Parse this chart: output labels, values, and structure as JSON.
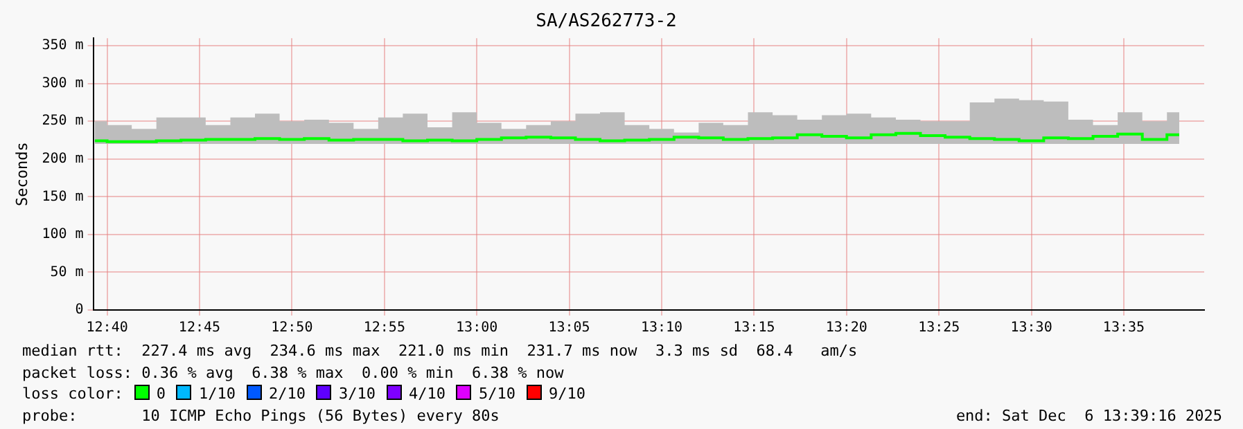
{
  "chart_data": {
    "type": "step",
    "title": "SA/AS262773-2",
    "ylabel": "Seconds",
    "x": [
      12.6556,
      12.6778,
      12.7,
      12.7222,
      12.7444,
      12.7667,
      12.7889,
      12.8111,
      12.8333,
      12.8556,
      12.8778,
      12.9,
      12.9222,
      12.9444,
      12.9667,
      12.9889,
      13.0111,
      13.0333,
      13.0556,
      13.0778,
      13.1,
      13.1222,
      13.1444,
      13.1667,
      13.1889,
      13.2111,
      13.2333,
      13.2556,
      13.2778,
      13.3,
      13.3222,
      13.3444,
      13.3667,
      13.3889,
      13.4111,
      13.4333,
      13.4556,
      13.4778,
      13.5,
      13.5222,
      13.5444,
      13.5667,
      13.5889,
      13.6111,
      13.6333
    ],
    "series": [
      {
        "color": "#00ff00",
        "values": [
          224,
          223,
          223,
          224,
          225,
          226,
          226,
          227,
          226,
          227,
          225,
          226,
          226,
          224,
          225,
          224,
          226,
          228,
          229,
          228,
          226,
          224,
          225,
          226,
          229,
          228,
          226,
          227,
          228,
          232,
          230,
          228,
          232,
          234,
          231,
          229,
          227,
          226,
          224,
          228,
          227,
          230,
          233,
          226,
          232
        ],
        "lower": [
          220,
          220,
          220,
          220,
          220,
          220,
          220,
          220,
          220,
          220,
          220,
          220,
          220,
          220,
          220,
          220,
          220,
          220,
          220,
          220,
          220,
          220,
          220,
          220,
          220,
          220,
          220,
          220,
          220,
          220,
          220,
          220,
          220,
          220,
          220,
          220,
          220,
          220,
          220,
          220,
          220,
          220,
          220,
          220,
          220
        ],
        "upper": [
          250,
          245,
          240,
          255,
          255,
          245,
          255,
          260,
          250,
          252,
          248,
          240,
          255,
          260,
          242,
          262,
          248,
          240,
          245,
          250,
          260,
          262,
          245,
          240,
          235,
          248,
          245,
          262,
          258,
          252,
          258,
          260,
          255,
          252,
          250,
          250,
          275,
          280,
          278,
          276,
          252,
          245,
          262,
          250,
          262
        ]
      }
    ],
    "xlim": [
      12.6542,
      13.6558
    ],
    "xticks": [
      {
        "value": 12.6667,
        "label": "12:40"
      },
      {
        "value": 12.75,
        "label": "12:45"
      },
      {
        "value": 12.8333,
        "label": "12:50"
      },
      {
        "value": 12.9167,
        "label": "12:55"
      },
      {
        "value": 13,
        "label": "13:00"
      },
      {
        "value": 13.0833,
        "label": "13:05"
      },
      {
        "value": 13.1667,
        "label": "13:10"
      },
      {
        "value": 13.25,
        "label": "13:15"
      },
      {
        "value": 13.3333,
        "label": "13:20"
      },
      {
        "value": 13.4167,
        "label": "13:25"
      },
      {
        "value": 13.5,
        "label": "13:30"
      },
      {
        "value": 13.5833,
        "label": "13:35"
      }
    ],
    "ylim": [
      0,
      360
    ],
    "yticks": [
      0,
      {
        "value": 50,
        "label": "50 m"
      },
      {
        "value": 100,
        "label": "100 m"
      },
      {
        "value": 150,
        "label": "150 m"
      },
      {
        "value": 200,
        "label": "200 m"
      },
      {
        "value": 250,
        "label": "250 m"
      },
      {
        "value": 300,
        "label": "300 m"
      },
      {
        "value": 350,
        "label": "350 m"
      }
    ],
    "grid": true,
    "annotations": [
      "median rtt:  227.4 ms avg  234.6 ms max  221.0 ms min  231.7 ms now  3.3 ms sd  68.4   am/s",
      "packet loss: 0.36 % avg  6.38 % max  0.00 % min  6.38 % now",
      "loss color:",
      "0",
      "1/10",
      "2/10",
      "3/10",
      "4/10",
      "5/10",
      "9/10",
      "probe:       10 ICMP Echo Pings (56 Bytes) every 80s",
      "end: Sat Dec  6 13:39:16 2025"
    ]
  }
}
